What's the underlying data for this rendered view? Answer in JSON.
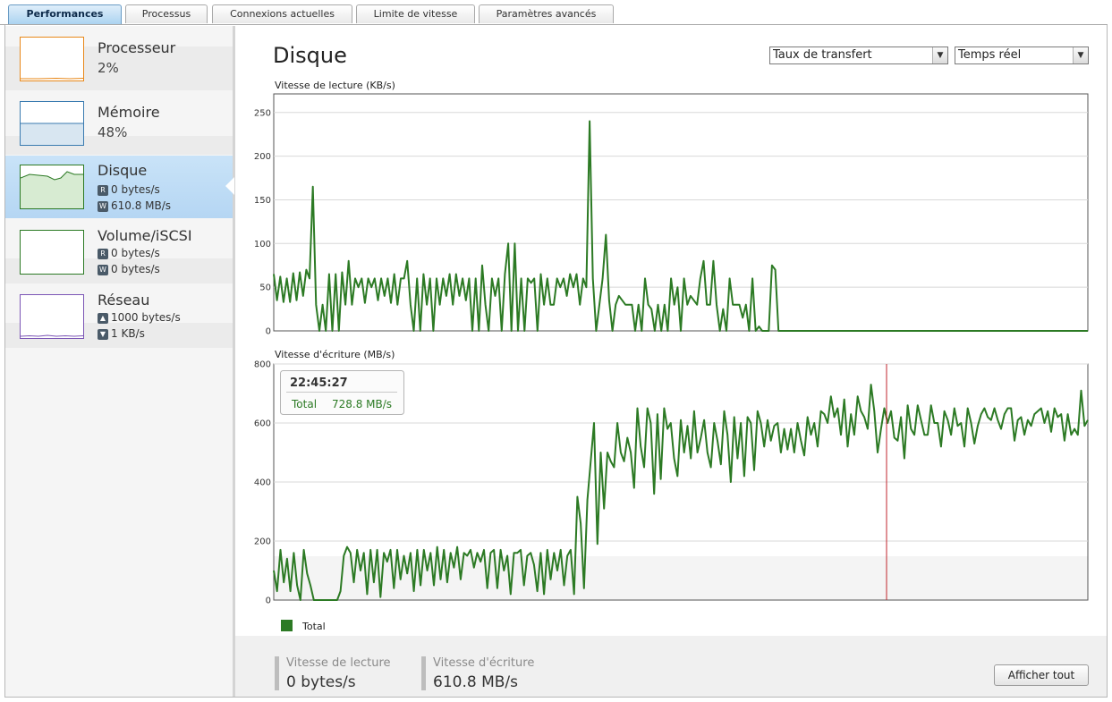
{
  "tabs": [
    {
      "label": "Performances",
      "active": true
    },
    {
      "label": "Processus",
      "active": false
    },
    {
      "label": "Connexions actuelles",
      "active": false
    },
    {
      "label": "Limite de vitesse",
      "active": false
    },
    {
      "label": "Paramètres avancés",
      "active": false
    }
  ],
  "sidebar": {
    "items": [
      {
        "title": "Processeur",
        "value": "2%",
        "color": "#e8881a"
      },
      {
        "title": "Mémoire",
        "value": "48%",
        "color": "#3a7bb0"
      },
      {
        "title": "Disque",
        "read_badge": "R",
        "read": "0 bytes/s",
        "write_badge": "W",
        "write": "610.8 MB/s",
        "color": "#2c7a24",
        "selected": true
      },
      {
        "title": "Volume/iSCSI",
        "read_badge": "R",
        "read": "0 bytes/s",
        "write_badge": "W",
        "write": "0 bytes/s",
        "color": "#2c7a24"
      },
      {
        "title": "Réseau",
        "up": "1000 bytes/s",
        "down": "1 KB/s",
        "color": "#7b55b5"
      }
    ]
  },
  "main": {
    "title": "Disque",
    "metric_select": "Taux de transfert",
    "period_select": "Temps réel"
  },
  "colors": {
    "series": "#2c7a24",
    "cursor": "#c0262c"
  },
  "chart_data": [
    {
      "type": "line",
      "title": "Vitesse de lecture (KB/s)",
      "ylim": [
        0,
        260
      ],
      "yticks": [
        0,
        50,
        100,
        150,
        200,
        250
      ],
      "grid": true,
      "series": [
        {
          "name": "Total",
          "values": [
            65,
            35,
            62,
            33,
            60,
            33,
            66,
            35,
            67,
            40,
            70,
            60,
            165,
            30,
            0,
            30,
            0,
            65,
            0,
            65,
            0,
            67,
            30,
            80,
            30,
            60,
            50,
            60,
            32,
            60,
            50,
            60,
            35,
            60,
            40,
            60,
            32,
            65,
            30,
            60,
            60,
            80,
            30,
            0,
            60,
            0,
            65,
            30,
            60,
            0,
            60,
            30,
            60,
            40,
            65,
            30,
            65,
            40,
            60,
            35,
            60,
            0,
            60,
            0,
            75,
            30,
            0,
            60,
            40,
            60,
            0,
            65,
            100,
            0,
            100,
            0,
            60,
            0,
            60,
            55,
            60,
            0,
            65,
            30,
            60,
            30,
            30,
            60,
            50,
            60,
            40,
            65,
            50,
            65,
            30,
            60,
            50,
            240,
            60,
            0,
            30,
            60,
            110,
            35,
            0,
            30,
            40,
            35,
            30,
            30,
            30,
            0,
            30,
            0,
            60,
            30,
            25,
            0,
            30,
            0,
            30,
            0,
            60,
            30,
            50,
            0,
            60,
            30,
            40,
            35,
            30,
            60,
            80,
            30,
            30,
            80,
            30,
            0,
            25,
            0,
            60,
            30,
            30,
            30,
            15,
            30,
            0,
            60,
            0,
            5,
            0,
            0,
            0,
            75,
            70,
            0,
            0,
            0,
            0,
            0,
            0,
            0,
            0,
            0,
            0,
            0,
            0,
            0,
            0,
            0,
            0,
            0,
            0,
            0,
            0,
            0,
            0,
            0,
            0,
            0,
            0,
            0,
            0,
            0,
            0,
            0,
            0,
            0,
            0,
            0,
            0,
            0,
            0,
            0,
            0,
            0,
            0,
            0,
            0,
            0,
            0,
            0,
            0,
            0,
            0,
            0,
            0,
            0,
            0,
            0,
            0,
            0,
            0,
            0,
            0,
            0,
            0,
            0,
            0,
            0,
            0,
            0,
            0,
            0,
            0,
            0,
            0,
            0,
            0,
            0,
            0,
            0,
            0,
            0,
            0,
            0,
            0,
            0,
            0,
            0,
            0,
            0,
            0,
            0,
            0,
            0,
            0,
            0,
            0,
            0,
            0
          ]
        }
      ]
    },
    {
      "type": "line",
      "title": "Vitesse d'écriture (MB/s)",
      "ylim": [
        0,
        800
      ],
      "yticks": [
        0,
        200,
        400,
        600,
        800
      ],
      "grid": true,
      "legend": "bottom-left",
      "series": [
        {
          "name": "Total",
          "values": [
            100,
            30,
            170,
            60,
            140,
            30,
            160,
            50,
            0,
            170,
            90,
            50,
            0,
            0,
            0,
            0,
            0,
            0,
            0,
            0,
            30,
            150,
            180,
            160,
            60,
            170,
            100,
            160,
            20,
            170,
            60,
            170,
            10,
            160,
            130,
            170,
            40,
            170,
            70,
            150,
            90,
            160,
            30,
            170,
            50,
            170,
            100,
            160,
            50,
            180,
            70,
            170,
            60,
            160,
            110,
            180,
            70,
            160,
            150,
            170,
            110,
            160,
            130,
            170,
            40,
            160,
            170,
            40,
            170,
            100,
            150,
            20,
            160,
            160,
            170,
            50,
            150,
            160,
            120,
            30,
            160,
            20,
            170,
            70,
            160,
            100,
            170,
            50,
            150,
            170,
            20,
            350,
            260,
            40,
            340,
            470,
            600,
            190,
            500,
            310,
            500,
            470,
            450,
            600,
            500,
            470,
            550,
            500,
            380,
            650,
            520,
            450,
            650,
            600,
            360,
            630,
            410,
            650,
            580,
            600,
            480,
            420,
            610,
            500,
            590,
            480,
            640,
            500,
            550,
            610,
            500,
            450,
            600,
            540,
            460,
            640,
            560,
            400,
            620,
            480,
            600,
            420,
            620,
            600,
            440,
            640,
            600,
            520,
            610,
            540,
            590,
            600,
            500,
            580,
            510,
            580,
            500,
            600,
            540,
            490,
            620,
            560,
            600,
            520,
            640,
            630,
            600,
            690,
            620,
            650,
            560,
            680,
            520,
            630,
            560,
            690,
            640,
            620,
            580,
            730,
            640,
            500,
            580,
            650,
            600,
            640,
            550,
            540,
            620,
            480,
            660,
            580,
            560,
            660,
            610,
            560,
            560,
            660,
            600,
            600,
            520,
            640,
            610,
            560,
            650,
            590,
            600,
            520,
            650,
            600,
            530,
            590,
            630,
            650,
            620,
            610,
            650,
            610,
            580,
            630,
            650,
            650,
            540,
            610,
            620,
            560,
            610,
            590,
            630,
            640,
            650,
            600,
            640,
            570,
            650,
            620,
            630,
            540,
            630,
            560,
            580,
            560,
            710,
            590,
            610
          ]
        }
      ],
      "cursor": {
        "time": "22:45:27",
        "series": "Total",
        "value": "728.8 MB/s"
      }
    }
  ],
  "legend": {
    "label": "Total"
  },
  "footer": {
    "read_label": "Vitesse de lecture",
    "read_value": "0 bytes/s",
    "write_label": "Vitesse d'écriture",
    "write_value": "610.8 MB/s",
    "show_all": "Afficher tout"
  }
}
